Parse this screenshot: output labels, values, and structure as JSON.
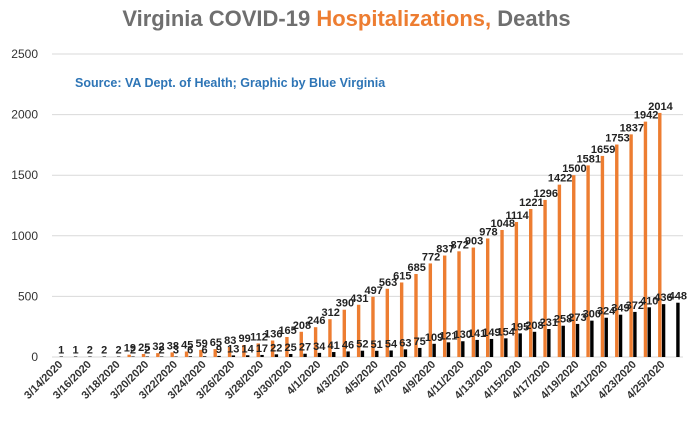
{
  "title": {
    "part1": "Virginia COVID-19 ",
    "part2": "Hospitalizations,",
    "part3": " Deaths"
  },
  "source": "Source: VA Dept. of Health; Graphic by Blue Virginia",
  "colors": {
    "hospitalizations": "#ed7d31",
    "deaths": "#000000",
    "gridline": "#d9d9d9"
  },
  "chart_data": {
    "type": "bar",
    "title": "Virginia COVID-19 Hospitalizations, Deaths",
    "ylim": [
      0,
      2500
    ],
    "yticks": [
      0,
      500,
      1000,
      1500,
      2000,
      2500
    ],
    "grid": true,
    "categories": [
      "3/14/2020",
      "3/15/2020",
      "3/16/2020",
      "3/17/2020",
      "3/18/2020",
      "3/19/2020",
      "3/20/2020",
      "3/21/2020",
      "3/22/2020",
      "3/23/2020",
      "3/24/2020",
      "3/25/2020",
      "3/26/2020",
      "3/27/2020",
      "3/28/2020",
      "3/29/2020",
      "3/30/2020",
      "3/31/2020",
      "4/1/2020",
      "4/2/2020",
      "4/3/2020",
      "4/4/2020",
      "4/5/2020",
      "4/6/2020",
      "4/7/2020",
      "4/8/2020",
      "4/9/2020",
      "4/10/2020",
      "4/11/2020",
      "4/12/2020",
      "4/13/2020",
      "4/14/2020",
      "4/15/2020",
      "4/16/2020",
      "4/17/2020",
      "4/18/2020",
      "4/19/2020",
      "4/20/2020",
      "4/21/2020",
      "4/22/2020",
      "4/23/2020",
      "4/24/2020",
      "4/25/2020",
      "4/26/2020"
    ],
    "x_tick_labels": [
      "3/14/2020",
      "3/16/2020",
      "3/18/2020",
      "3/20/2020",
      "3/22/2020",
      "3/24/2020",
      "3/26/2020",
      "3/28/2020",
      "3/30/2020",
      "4/1/2020",
      "4/3/2020",
      "4/5/2020",
      "4/7/2020",
      "4/9/2020",
      "4/11/2020",
      "4/13/2020",
      "4/15/2020",
      "4/17/2020",
      "4/19/2020",
      "4/21/2020",
      "4/23/2020",
      "4/25/2020"
    ],
    "series": [
      {
        "values": [
          null,
          null,
          null,
          null,
          null,
          19,
          25,
          32,
          38,
          45,
          59,
          65,
          83,
          99,
          112,
          136,
          165,
          208,
          246,
          312,
          390,
          431,
          497,
          563,
          615,
          685,
          772,
          837,
          872,
          903,
          978,
          1048,
          1114,
          1221,
          1296,
          1422,
          1500,
          1581,
          1659,
          1753,
          1837,
          1942,
          2014,
          null
        ]
      },
      {
        "values": [
          1,
          1,
          2,
          2,
          2,
          2,
          2,
          2,
          3,
          6,
          6,
          9,
          13,
          14,
          17,
          22,
          25,
          27,
          34,
          41,
          46,
          52,
          51,
          54,
          63,
          75,
          109,
          121,
          130,
          141,
          149,
          154,
          195,
          208,
          231,
          258,
          273,
          300,
          324,
          349,
          372,
          410,
          436,
          448
        ]
      }
    ]
  }
}
